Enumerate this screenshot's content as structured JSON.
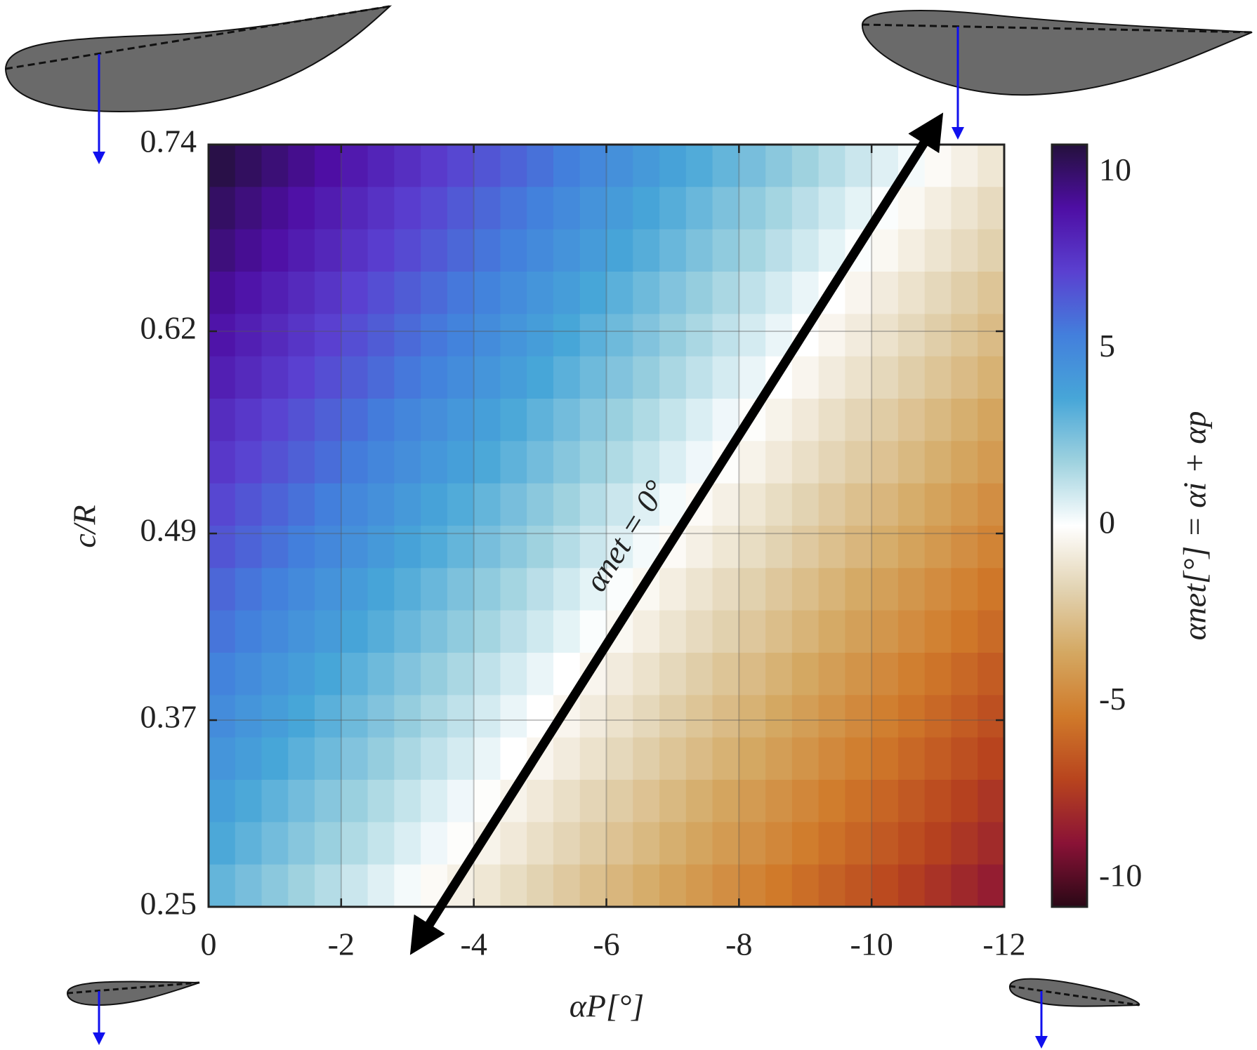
{
  "chart_data": {
    "type": "heatmap",
    "xlabel": "αP[°]",
    "ylabel": "c/R",
    "colorbar_label": "αnet[°] = αi + αp",
    "annotation": "αnet = 0°",
    "xlim": [
      0,
      -12
    ],
    "xticks": [
      0,
      -2,
      -4,
      -6,
      -8,
      -10,
      -12
    ],
    "ylim": [
      0.25,
      0.74
    ],
    "yticks": [
      0.25,
      0.37,
      0.49,
      0.62,
      0.74
    ],
    "clim": [
      -10.8,
      10.8
    ],
    "cticks": [
      -10,
      -5,
      0,
      5,
      10
    ],
    "grid": true,
    "colormap": [
      "#2a0816",
      "#8a1236",
      "#b8441e",
      "#d07a2a",
      "#d4a862",
      "#e2d3b2",
      "#ffffff",
      "#9fd2df",
      "#47a6d8",
      "#437fdc",
      "#5a40d0",
      "#4e0ea4",
      "#24103c"
    ],
    "z": [
      [
        10.6,
        10.2,
        9.8,
        9.4,
        9.0,
        8.6,
        8.2,
        7.8,
        7.4,
        7.0,
        6.6,
        6.2,
        5.8,
        5.4,
        5.0,
        4.6,
        4.2,
        3.8,
        3.4,
        3.0,
        2.6,
        2.2,
        1.8,
        1.4,
        1.0,
        0.6,
        0.2,
        -0.2,
        -0.6,
        -1.0
      ],
      [
        10.1,
        9.7,
        9.3,
        8.9,
        8.5,
        8.1,
        7.7,
        7.3,
        6.9,
        6.5,
        6.1,
        5.7,
        5.3,
        4.9,
        4.5,
        4.1,
        3.7,
        3.3,
        2.9,
        2.5,
        2.1,
        1.7,
        1.3,
        0.9,
        0.5,
        0.1,
        -0.3,
        -0.7,
        -1.1,
        -1.5
      ],
      [
        9.7,
        9.3,
        8.9,
        8.5,
        8.1,
        7.7,
        7.3,
        6.9,
        6.5,
        6.1,
        5.7,
        5.3,
        4.9,
        4.5,
        4.1,
        3.7,
        3.3,
        2.9,
        2.5,
        2.1,
        1.7,
        1.3,
        0.9,
        0.5,
        0.1,
        -0.3,
        -0.7,
        -1.1,
        -1.5,
        -1.9
      ],
      [
        9.2,
        8.8,
        8.4,
        8.0,
        7.6,
        7.2,
        6.8,
        6.4,
        6.0,
        5.6,
        5.2,
        4.8,
        4.4,
        4.0,
        3.6,
        3.2,
        2.8,
        2.4,
        2.0,
        1.6,
        1.2,
        0.8,
        0.4,
        0.0,
        -0.4,
        -0.8,
        -1.2,
        -1.6,
        -2.0,
        -2.4
      ],
      [
        8.8,
        8.4,
        8.0,
        7.6,
        7.2,
        6.8,
        6.4,
        6.0,
        5.6,
        5.2,
        4.8,
        4.4,
        4.0,
        3.6,
        3.2,
        2.8,
        2.4,
        2.0,
        1.6,
        1.2,
        0.8,
        0.4,
        0.0,
        -0.4,
        -0.8,
        -1.2,
        -1.6,
        -2.0,
        -2.4,
        -2.8
      ],
      [
        8.4,
        8.0,
        7.6,
        7.2,
        6.8,
        6.4,
        6.0,
        5.6,
        5.2,
        4.8,
        4.4,
        4.0,
        3.6,
        3.2,
        2.8,
        2.4,
        2.0,
        1.6,
        1.2,
        0.8,
        0.4,
        0.0,
        -0.4,
        -0.8,
        -1.2,
        -1.6,
        -2.0,
        -2.4,
        -2.8,
        -3.2
      ],
      [
        7.9,
        7.5,
        7.1,
        6.7,
        6.3,
        5.9,
        5.5,
        5.1,
        4.7,
        4.3,
        3.9,
        3.5,
        3.1,
        2.7,
        2.3,
        1.9,
        1.5,
        1.1,
        0.7,
        0.3,
        -0.1,
        -0.5,
        -0.9,
        -1.3,
        -1.7,
        -2.1,
        -2.5,
        -2.9,
        -3.3,
        -3.7
      ],
      [
        7.5,
        7.1,
        6.7,
        6.3,
        5.9,
        5.5,
        5.1,
        4.7,
        4.3,
        3.9,
        3.5,
        3.1,
        2.7,
        2.3,
        1.9,
        1.5,
        1.1,
        0.7,
        0.3,
        -0.1,
        -0.5,
        -0.9,
        -1.3,
        -1.7,
        -2.1,
        -2.5,
        -2.9,
        -3.3,
        -3.7,
        -4.1
      ],
      [
        7.0,
        6.6,
        6.2,
        5.8,
        5.4,
        5.0,
        4.6,
        4.2,
        3.8,
        3.4,
        3.0,
        2.6,
        2.2,
        1.8,
        1.4,
        1.0,
        0.6,
        0.2,
        -0.2,
        -0.6,
        -1.0,
        -1.4,
        -1.8,
        -2.2,
        -2.6,
        -3.0,
        -3.4,
        -3.8,
        -4.2,
        -4.6
      ],
      [
        6.6,
        6.2,
        5.8,
        5.4,
        5.0,
        4.6,
        4.2,
        3.8,
        3.4,
        3.0,
        2.6,
        2.2,
        1.8,
        1.4,
        1.0,
        0.6,
        0.2,
        -0.2,
        -0.6,
        -1.0,
        -1.4,
        -1.8,
        -2.2,
        -2.6,
        -3.0,
        -3.4,
        -3.8,
        -4.2,
        -4.6,
        -5.0
      ],
      [
        6.1,
        5.7,
        5.3,
        4.9,
        4.5,
        4.1,
        3.7,
        3.3,
        2.9,
        2.5,
        2.1,
        1.7,
        1.3,
        0.9,
        0.5,
        0.1,
        -0.3,
        -0.7,
        -1.1,
        -1.5,
        -1.9,
        -2.3,
        -2.7,
        -3.1,
        -3.5,
        -3.9,
        -4.3,
        -4.7,
        -5.1,
        -5.5
      ],
      [
        5.7,
        5.3,
        4.9,
        4.5,
        4.1,
        3.7,
        3.3,
        2.9,
        2.5,
        2.1,
        1.7,
        1.3,
        0.9,
        0.5,
        0.1,
        -0.3,
        -0.7,
        -1.1,
        -1.5,
        -1.9,
        -2.3,
        -2.7,
        -3.1,
        -3.5,
        -3.9,
        -4.3,
        -4.7,
        -5.1,
        -5.5,
        -5.9
      ],
      [
        5.2,
        4.8,
        4.4,
        4.0,
        3.6,
        3.2,
        2.8,
        2.4,
        2.0,
        1.6,
        1.2,
        0.8,
        0.4,
        0.0,
        -0.4,
        -0.8,
        -1.2,
        -1.6,
        -2.0,
        -2.4,
        -2.8,
        -3.2,
        -3.6,
        -4.0,
        -4.4,
        -4.8,
        -5.2,
        -5.6,
        -6.0,
        -6.4
      ],
      [
        4.8,
        4.4,
        4.0,
        3.6,
        3.2,
        2.8,
        2.4,
        2.0,
        1.6,
        1.2,
        0.8,
        0.4,
        0.0,
        -0.4,
        -0.8,
        -1.2,
        -1.6,
        -2.0,
        -2.4,
        -2.8,
        -3.2,
        -3.6,
        -4.0,
        -4.4,
        -4.8,
        -5.2,
        -5.6,
        -6.0,
        -6.4,
        -6.8
      ],
      [
        4.4,
        4.0,
        3.6,
        3.2,
        2.8,
        2.4,
        2.0,
        1.6,
        1.2,
        0.8,
        0.4,
        0.0,
        -0.4,
        -0.8,
        -1.2,
        -1.6,
        -2.0,
        -2.4,
        -2.8,
        -3.2,
        -3.6,
        -4.0,
        -4.4,
        -4.8,
        -5.2,
        -5.6,
        -6.0,
        -6.4,
        -6.8,
        -7.2
      ],
      [
        3.9,
        3.5,
        3.1,
        2.7,
        2.3,
        1.9,
        1.5,
        1.1,
        0.7,
        0.3,
        -0.1,
        -0.5,
        -0.9,
        -1.3,
        -1.7,
        -2.1,
        -2.5,
        -2.9,
        -3.3,
        -3.7,
        -4.1,
        -4.5,
        -4.9,
        -5.3,
        -5.7,
        -6.1,
        -6.5,
        -6.9,
        -7.3,
        -7.7
      ],
      [
        3.5,
        3.1,
        2.7,
        2.3,
        1.9,
        1.5,
        1.1,
        0.7,
        0.3,
        -0.1,
        -0.5,
        -0.9,
        -1.3,
        -1.7,
        -2.1,
        -2.5,
        -2.9,
        -3.3,
        -3.7,
        -4.1,
        -4.5,
        -4.9,
        -5.3,
        -5.7,
        -6.1,
        -6.5,
        -6.9,
        -7.3,
        -7.7,
        -8.1
      ],
      [
        3.0,
        2.6,
        2.2,
        1.8,
        1.4,
        1.0,
        0.6,
        0.2,
        -0.2,
        -0.6,
        -1.0,
        -1.4,
        -1.8,
        -2.2,
        -2.6,
        -3.0,
        -3.4,
        -3.8,
        -4.2,
        -4.6,
        -5.0,
        -5.4,
        -5.8,
        -6.2,
        -6.6,
        -7.0,
        -7.4,
        -7.8,
        -8.2,
        -8.6
      ]
    ]
  }
}
